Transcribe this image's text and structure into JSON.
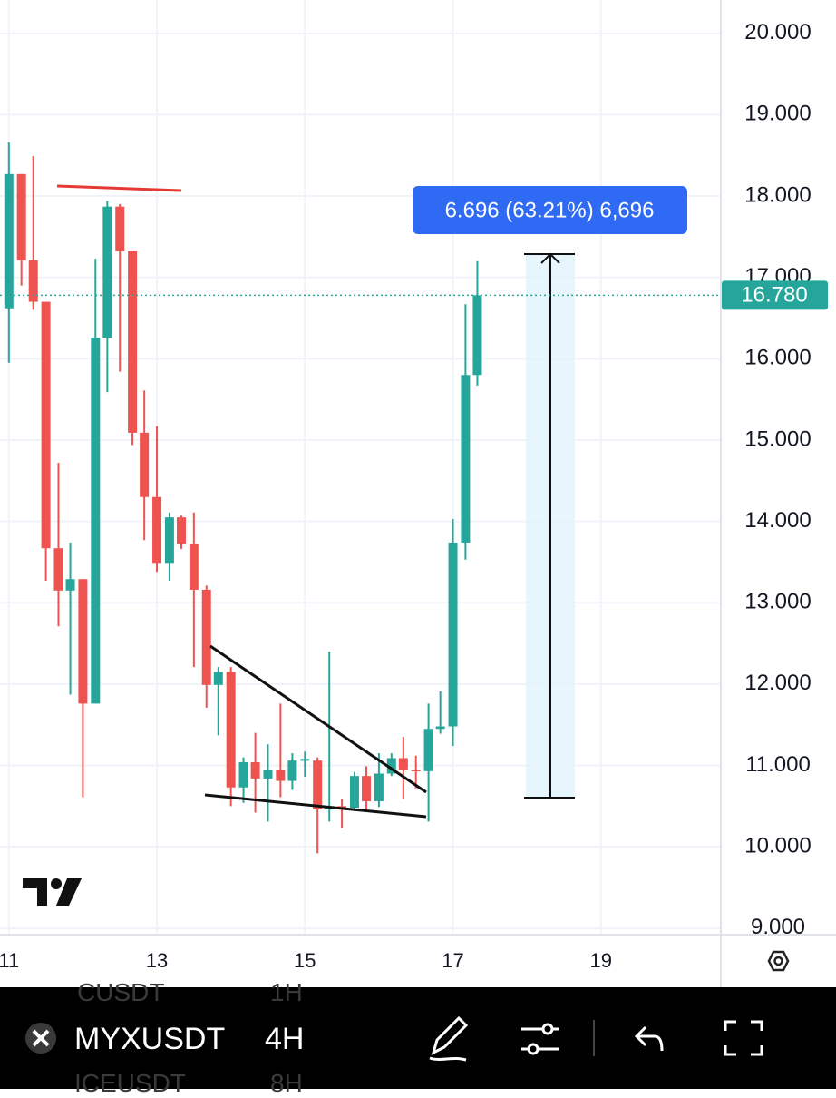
{
  "chart_data": {
    "type": "candlestick",
    "x": [
      11,
      11.17,
      11.33,
      11.5,
      11.67,
      11.83,
      12,
      12.17,
      12.33,
      12.5,
      12.67,
      12.83,
      13,
      13.17,
      13.33,
      13.5,
      13.67,
      13.83,
      14,
      14.17,
      14.33,
      14.5,
      14.67,
      14.83,
      15,
      15.17,
      15.33,
      15.5,
      15.67,
      15.83,
      16,
      16.17,
      16.33,
      16.5,
      16.67,
      16.83,
      17,
      17.17,
      17.33
    ],
    "open": [
      16.62,
      18.27,
      17.21,
      16.7,
      13.67,
      13.15,
      13.29,
      11.76,
      16.26,
      17.87,
      17.32,
      15.09,
      14.3,
      13.49,
      14.05,
      13.72,
      13.16,
      11.99,
      12.15,
      10.73,
      11.04,
      10.84,
      10.95,
      10.81,
      11.06,
      11.06,
      10.46,
      10.5,
      10.48,
      10.87,
      10.56,
      10.9,
      11.09,
      10.95,
      10.93,
      11.45,
      11.48,
      13.74,
      15.8
    ],
    "high": [
      18.66,
      18.27,
      18.49,
      16.7,
      14.72,
      13.74,
      13.29,
      17.23,
      17.94,
      17.9,
      17.32,
      15.61,
      15.17,
      14.11,
      14.07,
      14.11,
      13.21,
      12.21,
      12.21,
      11.1,
      11.4,
      11.26,
      11.76,
      11.15,
      11.17,
      11.1,
      12.4,
      10.59,
      10.92,
      10.99,
      11.15,
      11.15,
      11.35,
      11.12,
      11.76,
      11.91,
      14.03,
      16.67,
      17.2
    ],
    "low": [
      15.95,
      16.9,
      16.6,
      13.27,
      12.71,
      11.87,
      10.61,
      11.76,
      15.59,
      15.84,
      14.94,
      13.77,
      13.38,
      13.27,
      13.66,
      12.21,
      11.71,
      11.37,
      10.5,
      10.54,
      10.42,
      10.31,
      10.61,
      10.7,
      10.86,
      9.92,
      10.31,
      10.23,
      10.44,
      10.46,
      10.49,
      10.87,
      10.59,
      10.72,
      10.31,
      11.39,
      11.24,
      13.53,
      15.67
    ],
    "close": [
      18.27,
      17.21,
      16.7,
      13.67,
      13.15,
      13.29,
      11.76,
      16.26,
      17.87,
      17.32,
      15.09,
      14.3,
      13.49,
      14.05,
      13.72,
      13.16,
      11.99,
      12.15,
      10.73,
      11.04,
      10.84,
      10.95,
      10.81,
      11.06,
      11.08,
      10.46,
      10.5,
      10.48,
      10.87,
      10.56,
      10.9,
      11.09,
      10.95,
      10.93,
      11.45,
      11.48,
      13.74,
      15.8,
      16.78
    ],
    "up_color": "#26a69a",
    "down_color": "#ef5350",
    "xlim": [
      10.88,
      20.62
    ],
    "xticks": [
      11,
      13,
      15,
      17,
      19
    ],
    "ylim": [
      8.92,
      20.41
    ],
    "yticks": [
      {
        "value": 9,
        "label": "9.000"
      },
      {
        "value": 10,
        "label": "10.000"
      },
      {
        "value": 11,
        "label": "11.000"
      },
      {
        "value": 12,
        "label": "12.000"
      },
      {
        "value": 13,
        "label": "13.000"
      },
      {
        "value": 14,
        "label": "14.000"
      },
      {
        "value": 15,
        "label": "15.000"
      },
      {
        "value": 16,
        "label": "16.000"
      },
      {
        "value": 17,
        "label": "17.000"
      },
      {
        "value": 18,
        "label": "18.000"
      },
      {
        "value": 19,
        "label": "19.000"
      },
      {
        "value": 20,
        "label": "20.000"
      }
    ],
    "grid": true,
    "last_price": {
      "value": 16.78,
      "label": "16.780"
    },
    "measure_label": "6.696 (63.21%) 6,696"
  },
  "toolbar": {
    "symbol": "MYXUSDT",
    "interval": "4H",
    "ghost_above": [
      "CUSDT",
      "1H"
    ],
    "ghost_below": [
      "ICEUSDT",
      "8H"
    ]
  }
}
